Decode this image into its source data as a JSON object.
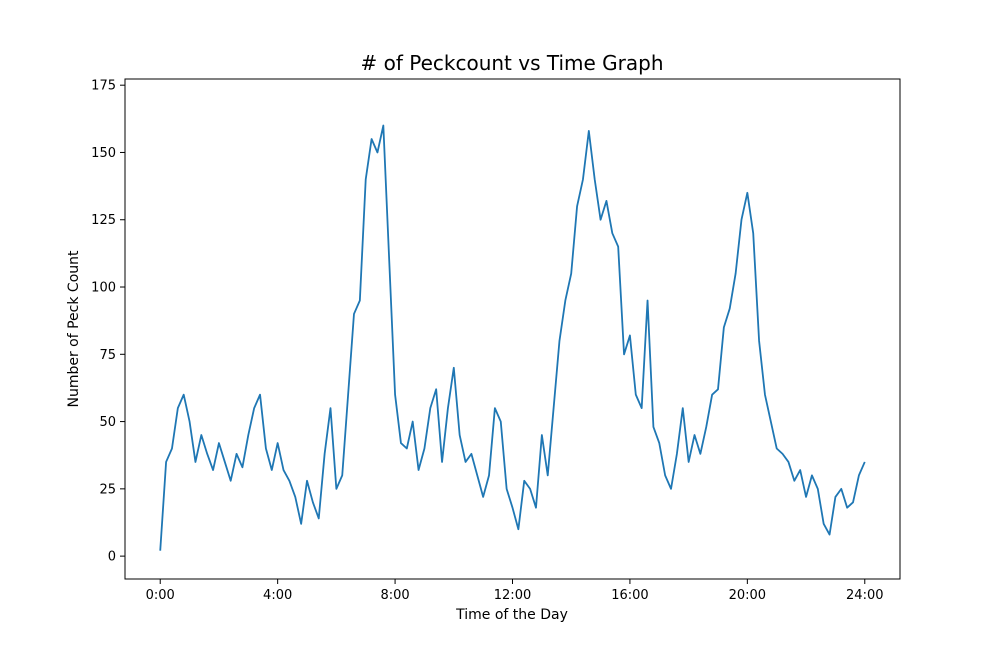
{
  "chart_data": {
    "type": "line",
    "title": "# of Peckcount vs Time Graph",
    "x_label": "Time of the Day",
    "y_label": "Number of Peck Count",
    "x": [
      0,
      0.2,
      0.4,
      0.6,
      0.8,
      1,
      1.2,
      1.4,
      1.6,
      1.8,
      2,
      2.2,
      2.4,
      2.6,
      2.8,
      3,
      3.2,
      3.4,
      3.6,
      3.8,
      4,
      4.2,
      4.4,
      4.6,
      4.8,
      5,
      5.2,
      5.4,
      5.6,
      5.8,
      6,
      6.2,
      6.4,
      6.6,
      6.8,
      7,
      7.2,
      7.4,
      7.6,
      7.8,
      8,
      8.2,
      8.4,
      8.6,
      8.8,
      9,
      9.2,
      9.4,
      9.6,
      9.8,
      10,
      10.2,
      10.4,
      10.6,
      10.8,
      11,
      11.2,
      11.4,
      11.6,
      11.8,
      12,
      12.2,
      12.4,
      12.6,
      12.8,
      13,
      13.2,
      13.4,
      13.6,
      13.8,
      14,
      14.2,
      14.4,
      14.6,
      14.8,
      15,
      15.2,
      15.4,
      15.6,
      15.8,
      16,
      16.2,
      16.4,
      16.6,
      16.8,
      17,
      17.2,
      17.4,
      17.6,
      17.8,
      18,
      18.2,
      18.4,
      18.6,
      18.8,
      19,
      19.2,
      19.4,
      19.6,
      19.8,
      20,
      20.2,
      20.4,
      20.6,
      20.8,
      21,
      21.2,
      21.4,
      21.6,
      21.8,
      22,
      22.2,
      22.4,
      22.6,
      22.8,
      23,
      23.2,
      23.4,
      23.6,
      23.8,
      24
    ],
    "series": [
      {
        "name": "Peck Count",
        "color": "#1f77b4",
        "values": [
          2,
          35,
          40,
          55,
          60,
          50,
          35,
          45,
          38,
          32,
          42,
          35,
          28,
          38,
          33,
          45,
          55,
          60,
          40,
          32,
          42,
          32,
          28,
          22,
          12,
          28,
          20,
          14,
          38,
          55,
          25,
          30,
          60,
          90,
          95,
          140,
          155,
          150,
          160,
          110,
          60,
          42,
          40,
          50,
          32,
          40,
          55,
          62,
          35,
          55,
          70,
          45,
          35,
          38,
          30,
          22,
          30,
          55,
          50,
          25,
          18,
          10,
          28,
          25,
          18,
          45,
          30,
          55,
          80,
          95,
          105,
          130,
          140,
          158,
          140,
          125,
          132,
          120,
          115,
          75,
          82,
          60,
          55,
          95,
          48,
          42,
          30,
          25,
          38,
          55,
          35,
          45,
          38,
          48,
          60,
          62,
          85,
          92,
          105,
          125,
          135,
          120,
          80,
          60,
          50,
          40,
          38,
          35,
          28,
          32,
          22,
          30,
          25,
          12,
          8,
          22,
          25,
          18,
          20,
          30,
          35
        ]
      }
    ],
    "xlim": [
      -1.2,
      25.2
    ],
    "ylim": [
      -8.5,
      177.3
    ],
    "xticks": [
      {
        "value": 0,
        "label": "0:00"
      },
      {
        "value": 4,
        "label": "4:00"
      },
      {
        "value": 8,
        "label": "8:00"
      },
      {
        "value": 12,
        "label": "12:00"
      },
      {
        "value": 16,
        "label": "16:00"
      },
      {
        "value": 20,
        "label": "20:00"
      },
      {
        "value": 24,
        "label": "24:00"
      }
    ],
    "yticks": [
      0,
      25,
      50,
      75,
      100,
      125,
      150,
      175
    ],
    "grid": false
  }
}
